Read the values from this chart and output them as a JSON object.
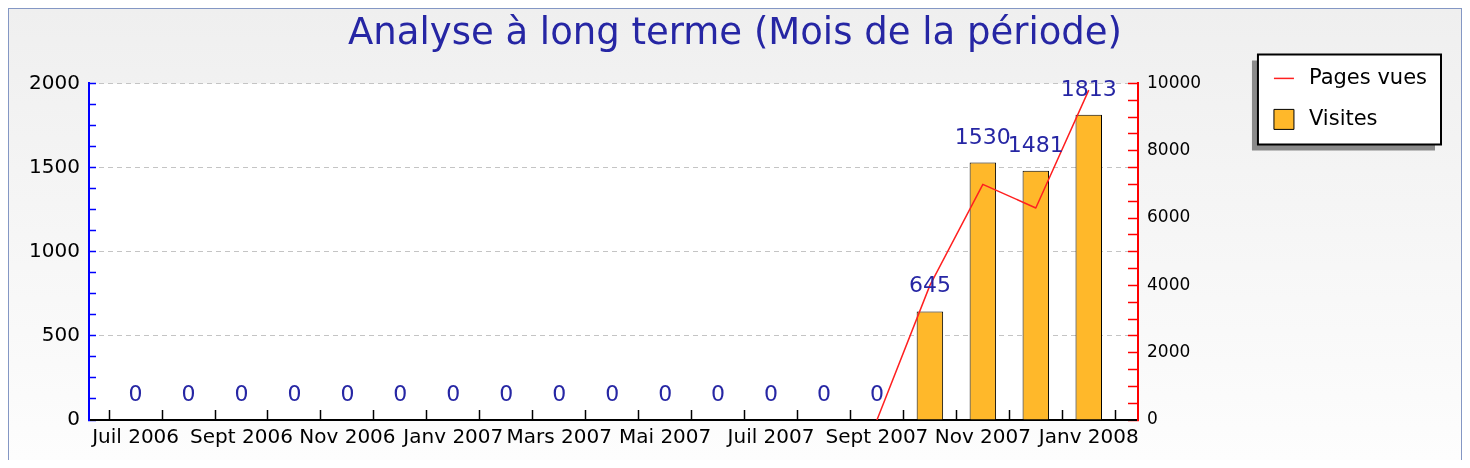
{
  "chart_data": {
    "type": "bar",
    "title": "Analyse à long terme (Mois de la période)",
    "categories": [
      "Juil 2006",
      null,
      "Sept 2006",
      null,
      "Nov 2006",
      null,
      "Janv 2007",
      null,
      "Mars 2007",
      null,
      "Mai 2007",
      null,
      "Juil 2007",
      null,
      "Sept 2007",
      null,
      "Nov 2007",
      null,
      "Janv 2008"
    ],
    "series": [
      {
        "name": "Pages vues",
        "type": "line",
        "axis": "y2",
        "color": "#ff2020",
        "values": [
          null,
          null,
          null,
          null,
          null,
          null,
          null,
          null,
          null,
          null,
          null,
          null,
          null,
          null,
          0,
          4000,
          7000,
          6300,
          9800
        ]
      },
      {
        "name": "Visites",
        "color": "#ffb82a",
        "values": [
          0,
          0,
          0,
          0,
          0,
          0,
          0,
          0,
          0,
          0,
          0,
          0,
          0,
          0,
          0,
          645,
          1530,
          1481,
          1813
        ],
        "value_labels": [
          "0",
          "0",
          "0",
          "0",
          "0",
          "0",
          "0",
          "0",
          "0",
          "0",
          "0",
          "0",
          "0",
          "0",
          "0",
          "645",
          "1530",
          "1481",
          "1813"
        ]
      }
    ],
    "ylim": [
      0,
      2000
    ],
    "yticks": [
      0,
      {
        "value": 125,
        "label": null
      },
      {
        "value": 250,
        "label": null
      },
      {
        "value": 375,
        "label": null
      },
      500,
      {
        "value": 625,
        "label": null
      },
      {
        "value": 750,
        "label": null
      },
      {
        "value": 875,
        "label": null
      },
      1000,
      {
        "value": 1125,
        "label": null
      },
      {
        "value": 1250,
        "label": null
      },
      {
        "value": 1375,
        "label": null
      },
      1500,
      {
        "value": 1625,
        "label": null
      },
      {
        "value": 1750,
        "label": null
      },
      {
        "value": 1875,
        "label": null
      },
      2000
    ],
    "y2lim": [
      0,
      10000
    ],
    "y2ticks": [
      0,
      {
        "value": 500,
        "label": null
      },
      {
        "value": 1000,
        "label": null
      },
      {
        "value": 1500,
        "label": null
      },
      2000,
      {
        "value": 2500,
        "label": null
      },
      {
        "value": 3000,
        "label": null
      },
      {
        "value": 3500,
        "label": null
      },
      4000,
      {
        "value": 4500,
        "label": null
      },
      {
        "value": 5000,
        "label": null
      },
      {
        "value": 5500,
        "label": null
      },
      6000,
      {
        "value": 6500,
        "label": null
      },
      {
        "value": 7000,
        "label": null
      },
      {
        "value": 7500,
        "label": null
      },
      8000,
      {
        "value": 8500,
        "label": null
      },
      {
        "value": 9000,
        "label": null
      },
      {
        "value": 9500,
        "label": null
      },
      10000
    ],
    "grid": "y",
    "legend": "top right",
    "marker": "none"
  }
}
